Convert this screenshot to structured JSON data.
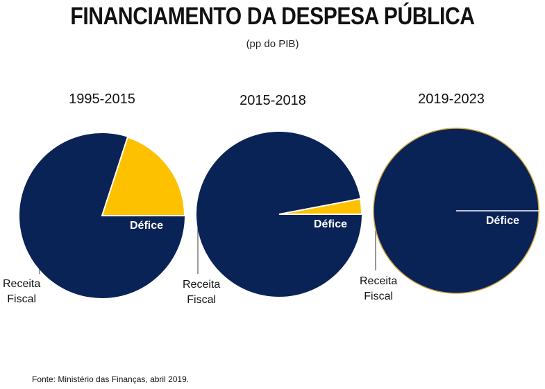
{
  "title": "FINANCIAMENTO DA DESPESA PÚBLICA",
  "subtitle": "(pp do PIB)",
  "source": "Fonte: Ministério das Finanças, abril 2019.",
  "colors": {
    "receita": "#0a2357",
    "defice": "#fdc100",
    "outline": "#d4a53a"
  },
  "chart_data": [
    {
      "type": "pie",
      "title": "1995-2015",
      "slices": [
        {
          "label": "Défice",
          "value": 20
        },
        {
          "label": "Receita Fiscal",
          "value": 80
        }
      ]
    },
    {
      "type": "pie",
      "title": "2015-2018",
      "slices": [
        {
          "label": "Défice",
          "value": 3
        },
        {
          "label": "Receita Fiscal",
          "value": 97
        }
      ]
    },
    {
      "type": "pie",
      "title": "2019-2023",
      "slices": [
        {
          "label": "Défice",
          "value": 0
        },
        {
          "label": "Receita Fiscal",
          "value": 100
        }
      ]
    }
  ],
  "labels": {
    "defice": "Défice",
    "receita_line1": "Receita",
    "receita_line2": "Fiscal"
  }
}
